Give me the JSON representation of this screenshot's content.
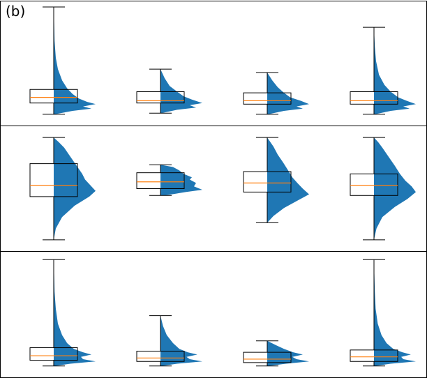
{
  "figure": {
    "panel_label": "(b)"
  },
  "colors": {
    "violin": "#1f77b4",
    "median": "#ff7f0e",
    "box_edge": "#000000",
    "frame": "#000000"
  },
  "chart_data": [
    {
      "type": "violin-box",
      "title": "",
      "xlabel": "",
      "ylabel": "",
      "ylim": [
        0,
        1
      ],
      "groups": [
        {
          "whisker_low": 0.05,
          "q1": 0.15,
          "median": 0.2,
          "q3": 0.27,
          "whisker_high": 1.0,
          "density": [
            [
              0.05,
              0.02
            ],
            [
              0.08,
              0.45
            ],
            [
              0.1,
              0.9
            ],
            [
              0.12,
              0.7
            ],
            [
              0.14,
              1.0
            ],
            [
              0.16,
              0.8
            ],
            [
              0.19,
              0.6
            ],
            [
              0.23,
              0.45
            ],
            [
              0.28,
              0.32
            ],
            [
              0.35,
              0.2
            ],
            [
              0.45,
              0.1
            ],
            [
              0.55,
              0.05
            ],
            [
              0.7,
              0.02
            ],
            [
              1.0,
              0.0
            ]
          ]
        },
        {
          "whisker_low": 0.06,
          "q1": 0.15,
          "median": 0.17,
          "q3": 0.25,
          "whisker_high": 0.45,
          "density": [
            [
              0.06,
              0.02
            ],
            [
              0.09,
              0.4
            ],
            [
              0.11,
              0.85
            ],
            [
              0.13,
              0.7
            ],
            [
              0.15,
              1.0
            ],
            [
              0.18,
              0.75
            ],
            [
              0.21,
              0.55
            ],
            [
              0.25,
              0.4
            ],
            [
              0.3,
              0.22
            ],
            [
              0.37,
              0.1
            ],
            [
              0.45,
              0.0
            ]
          ]
        },
        {
          "whisker_low": 0.05,
          "q1": 0.14,
          "median": 0.17,
          "q3": 0.24,
          "whisker_high": 0.42,
          "density": [
            [
              0.05,
              0.02
            ],
            [
              0.08,
              0.4
            ],
            [
              0.1,
              0.85
            ],
            [
              0.12,
              0.7
            ],
            [
              0.14,
              1.0
            ],
            [
              0.17,
              0.8
            ],
            [
              0.2,
              0.55
            ],
            [
              0.24,
              0.4
            ],
            [
              0.29,
              0.25
            ],
            [
              0.35,
              0.12
            ],
            [
              0.42,
              0.0
            ]
          ]
        },
        {
          "whisker_low": 0.05,
          "q1": 0.14,
          "median": 0.17,
          "q3": 0.25,
          "whisker_high": 0.82,
          "density": [
            [
              0.05,
              0.02
            ],
            [
              0.08,
              0.4
            ],
            [
              0.1,
              0.85
            ],
            [
              0.12,
              0.7
            ],
            [
              0.14,
              1.0
            ],
            [
              0.17,
              0.78
            ],
            [
              0.2,
              0.58
            ],
            [
              0.25,
              0.4
            ],
            [
              0.31,
              0.25
            ],
            [
              0.4,
              0.12
            ],
            [
              0.52,
              0.05
            ],
            [
              0.65,
              0.02
            ],
            [
              0.82,
              0.0
            ]
          ]
        }
      ]
    },
    {
      "type": "violin-box",
      "title": "",
      "xlabel": "",
      "ylabel": "",
      "ylim": [
        0,
        1
      ],
      "groups": [
        {
          "whisker_low": 0.05,
          "q1": 0.43,
          "median": 0.53,
          "q3": 0.72,
          "whisker_high": 0.95,
          "density": [
            [
              0.05,
              0.0
            ],
            [
              0.15,
              0.05
            ],
            [
              0.25,
              0.2
            ],
            [
              0.35,
              0.5
            ],
            [
              0.43,
              0.85
            ],
            [
              0.48,
              1.0
            ],
            [
              0.52,
              0.9
            ],
            [
              0.58,
              0.75
            ],
            [
              0.63,
              0.68
            ],
            [
              0.7,
              0.55
            ],
            [
              0.78,
              0.4
            ],
            [
              0.86,
              0.25
            ],
            [
              0.91,
              0.12
            ],
            [
              0.95,
              0.0
            ]
          ]
        },
        {
          "whisker_low": 0.44,
          "q1": 0.5,
          "median": 0.56,
          "q3": 0.64,
          "whisker_high": 0.71,
          "density": [
            [
              0.44,
              0.1
            ],
            [
              0.47,
              0.6
            ],
            [
              0.49,
              1.0
            ],
            [
              0.52,
              0.8
            ],
            [
              0.55,
              0.85
            ],
            [
              0.58,
              0.7
            ],
            [
              0.6,
              0.75
            ],
            [
              0.63,
              0.55
            ],
            [
              0.66,
              0.45
            ],
            [
              0.69,
              0.3
            ],
            [
              0.71,
              0.0
            ]
          ]
        },
        {
          "whisker_low": 0.2,
          "q1": 0.47,
          "median": 0.55,
          "q3": 0.65,
          "whisker_high": 0.95,
          "density": [
            [
              0.2,
              0.0
            ],
            [
              0.26,
              0.15
            ],
            [
              0.33,
              0.4
            ],
            [
              0.4,
              0.75
            ],
            [
              0.45,
              1.0
            ],
            [
              0.5,
              0.85
            ],
            [
              0.55,
              0.72
            ],
            [
              0.6,
              0.6
            ],
            [
              0.66,
              0.5
            ],
            [
              0.73,
              0.38
            ],
            [
              0.8,
              0.25
            ],
            [
              0.87,
              0.15
            ],
            [
              0.95,
              0.0
            ]
          ]
        },
        {
          "whisker_low": 0.05,
          "q1": 0.44,
          "median": 0.53,
          "q3": 0.63,
          "whisker_high": 0.95,
          "density": [
            [
              0.05,
              0.0
            ],
            [
              0.15,
              0.06
            ],
            [
              0.25,
              0.2
            ],
            [
              0.34,
              0.5
            ],
            [
              0.41,
              0.8
            ],
            [
              0.47,
              1.0
            ],
            [
              0.52,
              0.9
            ],
            [
              0.57,
              0.75
            ],
            [
              0.63,
              0.62
            ],
            [
              0.7,
              0.5
            ],
            [
              0.78,
              0.35
            ],
            [
              0.86,
              0.2
            ],
            [
              0.91,
              0.1
            ],
            [
              0.95,
              0.0
            ]
          ]
        }
      ]
    },
    {
      "type": "violin-box",
      "title": "",
      "xlabel": "",
      "ylabel": "",
      "ylim": [
        0,
        1
      ],
      "groups": [
        {
          "whisker_low": 0.05,
          "q1": 0.1,
          "median": 0.14,
          "q3": 0.21,
          "whisker_high": 0.98,
          "density": [
            [
              0.05,
              0.02
            ],
            [
              0.07,
              0.4
            ],
            [
              0.09,
              1.0
            ],
            [
              0.11,
              0.7
            ],
            [
              0.13,
              0.65
            ],
            [
              0.15,
              0.9
            ],
            [
              0.17,
              0.7
            ],
            [
              0.2,
              0.48
            ],
            [
              0.25,
              0.32
            ],
            [
              0.32,
              0.2
            ],
            [
              0.42,
              0.1
            ],
            [
              0.55,
              0.05
            ],
            [
              0.7,
              0.02
            ],
            [
              0.98,
              0.0
            ]
          ]
        },
        {
          "whisker_low": 0.05,
          "q1": 0.09,
          "median": 0.12,
          "q3": 0.18,
          "whisker_high": 0.49,
          "density": [
            [
              0.05,
              0.02
            ],
            [
              0.07,
              0.4
            ],
            [
              0.09,
              1.0
            ],
            [
              0.11,
              0.7
            ],
            [
              0.13,
              0.62
            ],
            [
              0.15,
              0.88
            ],
            [
              0.17,
              0.65
            ],
            [
              0.2,
              0.45
            ],
            [
              0.25,
              0.3
            ],
            [
              0.32,
              0.15
            ],
            [
              0.4,
              0.06
            ],
            [
              0.49,
              0.0
            ]
          ]
        },
        {
          "whisker_low": 0.05,
          "q1": 0.08,
          "median": 0.11,
          "q3": 0.17,
          "whisker_high": 0.27,
          "density": [
            [
              0.05,
              0.02
            ],
            [
              0.07,
              0.45
            ],
            [
              0.09,
              1.0
            ],
            [
              0.11,
              0.7
            ],
            [
              0.13,
              0.6
            ],
            [
              0.15,
              0.85
            ],
            [
              0.17,
              0.62
            ],
            [
              0.2,
              0.4
            ],
            [
              0.23,
              0.22
            ],
            [
              0.27,
              0.0
            ]
          ]
        },
        {
          "whisker_low": 0.05,
          "q1": 0.09,
          "median": 0.13,
          "q3": 0.19,
          "whisker_high": 0.98,
          "density": [
            [
              0.05,
              0.02
            ],
            [
              0.07,
              0.4
            ],
            [
              0.09,
              1.0
            ],
            [
              0.11,
              0.7
            ],
            [
              0.13,
              0.65
            ],
            [
              0.15,
              0.88
            ],
            [
              0.17,
              0.68
            ],
            [
              0.2,
              0.46
            ],
            [
              0.25,
              0.3
            ],
            [
              0.32,
              0.18
            ],
            [
              0.42,
              0.09
            ],
            [
              0.55,
              0.04
            ],
            [
              0.7,
              0.02
            ],
            [
              0.98,
              0.0
            ]
          ]
        }
      ]
    }
  ]
}
